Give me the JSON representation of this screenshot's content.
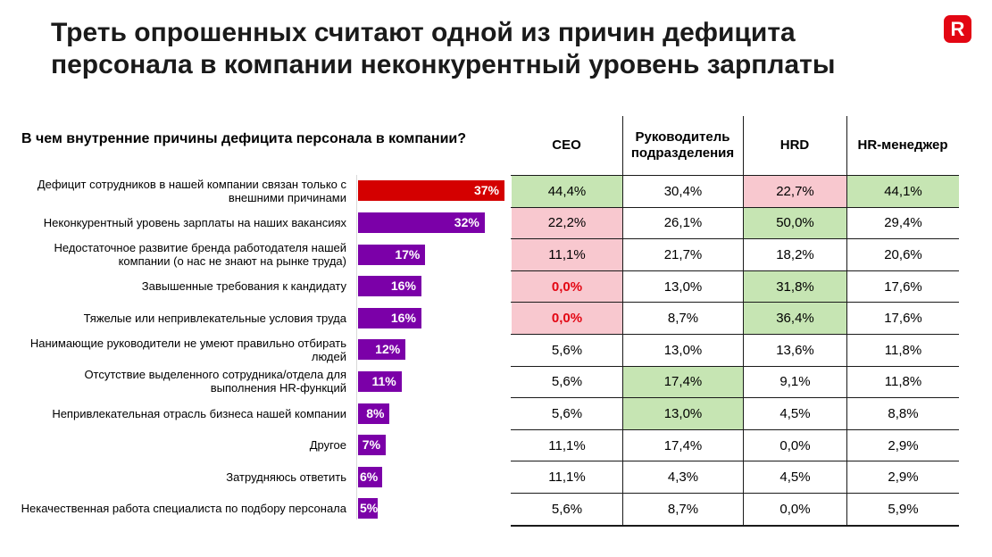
{
  "title": "Треть опрошенных считают одной из причин дефицита персонала в компании неконкурентный уровень зарплаты",
  "logo_letter": "R",
  "colors": {
    "accent": "#e30613",
    "bar": "#7b00a8",
    "green": "#c6e5b3",
    "pink": "#f8c8cf"
  },
  "chart_data": {
    "type": "bar",
    "orientation": "horizontal",
    "title": "В чем внутренние причины дефицита персонала в компании?",
    "categories": [
      "Дефицит сотрудников в нашей компании связан только с внешними причинами",
      "Неконкурентный уровень зарплаты на наших вакансиях",
      "Недостаточное развитие бренда работодателя нашей компании (о нас не знают на рынке труда)",
      "Завышенные требования к кандидату",
      "Тяжелые или непривлекательные условия труда",
      "Нанимающие руководители не умеют правильно отбирать людей",
      "Отсутствие выделенного сотрудника/отдела для выполнения HR-функций",
      "Непривлекательная отрасль бизнеса нашей компании",
      "Другое",
      "Затрудняюсь ответить",
      "Некачественная работа специалиста по подбору персонала"
    ],
    "category_lines": [
      [
        "Дефицит сотрудников в нашей компании связан только с",
        "внешними причинами"
      ],
      [
        "Неконкурентный уровень зарплаты на наших вакансиях"
      ],
      [
        "Недостаточное развитие бренда работодателя нашей",
        "компании (о нас не знают на рынке труда)"
      ],
      [
        "Завышенные требования к кандидату"
      ],
      [
        "Тяжелые или непривлекательные условия труда"
      ],
      [
        "Нанимающие руководители не умеют правильно отбирать",
        "людей"
      ],
      [
        "Отсутствие выделенного сотрудника/отдела для",
        "выполнения HR-функций"
      ],
      [
        "Непривлекательная отрасль бизнеса нашей компании"
      ],
      [
        "Другое"
      ],
      [
        "Затрудняюсь ответить"
      ],
      [
        "Некачественная работа специалиста по подбору персонала"
      ]
    ],
    "values": [
      37,
      32,
      17,
      16,
      16,
      12,
      11,
      8,
      7,
      6,
      5
    ],
    "value_labels": [
      "37%",
      "32%",
      "17%",
      "16%",
      "16%",
      "12%",
      "11%",
      "8%",
      "7%",
      "6%",
      "5%"
    ],
    "bar_colors": [
      "#d40000",
      "#7b00a8",
      "#7b00a8",
      "#7b00a8",
      "#7b00a8",
      "#7b00a8",
      "#7b00a8",
      "#7b00a8",
      "#7b00a8",
      "#7b00a8",
      "#7b00a8"
    ],
    "xlim": [
      0,
      37
    ],
    "grid": false,
    "table": {
      "columns": [
        {
          "label": "CEO",
          "lines": [
            "CEO"
          ]
        },
        {
          "label": "Руководитель подразделения",
          "lines": [
            "Руководитель",
            "подразделения"
          ]
        },
        {
          "label": "HRD",
          "lines": [
            "HRD"
          ]
        },
        {
          "label": "HR-менеджер",
          "lines": [
            "HR-менеджер"
          ]
        }
      ],
      "rows": [
        [
          "44,4%",
          "30,4%",
          "22,7%",
          "44,1%"
        ],
        [
          "22,2%",
          "26,1%",
          "50,0%",
          "29,4%"
        ],
        [
          "11,1%",
          "21,7%",
          "18,2%",
          "20,6%"
        ],
        [
          "0,0%",
          "13,0%",
          "31,8%",
          "17,6%"
        ],
        [
          "0,0%",
          "8,7%",
          "36,4%",
          "17,6%"
        ],
        [
          "5,6%",
          "13,0%",
          "13,6%",
          "11,8%"
        ],
        [
          "5,6%",
          "17,4%",
          "9,1%",
          "11,8%"
        ],
        [
          "5,6%",
          "13,0%",
          "4,5%",
          "8,8%"
        ],
        [
          "11,1%",
          "17,4%",
          "0,0%",
          "2,9%"
        ],
        [
          "11,1%",
          "4,3%",
          "4,5%",
          "2,9%"
        ],
        [
          "5,6%",
          "8,7%",
          "0,0%",
          "5,9%"
        ]
      ],
      "highlight": [
        [
          "green",
          "",
          "pink",
          "green"
        ],
        [
          "pink",
          "",
          "green",
          ""
        ],
        [
          "pink",
          "",
          "",
          ""
        ],
        [
          "pink-red",
          "",
          "green",
          ""
        ],
        [
          "pink-red",
          "",
          "green",
          ""
        ],
        [
          "",
          "",
          "",
          ""
        ],
        [
          "",
          "green",
          "",
          ""
        ],
        [
          "",
          "green",
          "",
          ""
        ],
        [
          "",
          "",
          "",
          ""
        ],
        [
          "",
          "",
          "",
          ""
        ],
        [
          "",
          "",
          "",
          ""
        ]
      ]
    }
  }
}
